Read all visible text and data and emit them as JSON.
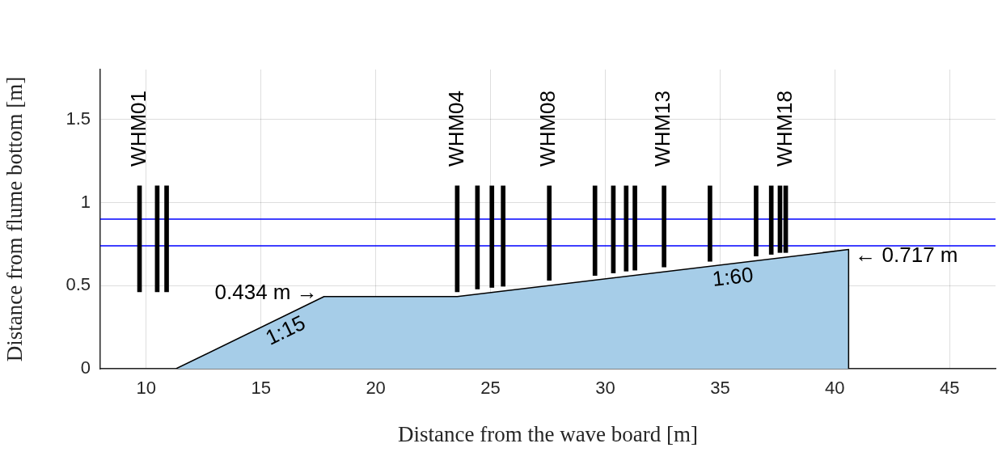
{
  "chart_data": {
    "type": "bar",
    "xlabel": "Distance from the wave board [m]",
    "ylabel": "Distance from flume bottom [m]",
    "xlim": [
      8,
      47
    ],
    "xticks": [
      10,
      15,
      20,
      25,
      30,
      35,
      40,
      45
    ],
    "ylim": [
      0,
      1.8
    ],
    "yticks": [
      0,
      0.5,
      1,
      1.5
    ],
    "grid": true,
    "legend": false,
    "series": [
      {
        "type": "area",
        "color": "#a6cde8",
        "x": [
          11.3,
          17.75,
          23.55,
          40.6,
          40.6
        ],
        "values": [
          0,
          0.434,
          0.434,
          0.717,
          0
        ]
      },
      {
        "color": "#000000",
        "x": [
          9.71,
          10.48,
          10.89,
          23.55,
          24.43,
          25.06,
          25.55,
          27.56,
          29.55,
          30.35,
          30.91,
          31.29,
          32.56,
          34.56,
          36.57,
          37.23,
          37.61,
          37.86
        ],
        "base": [
          0.463,
          0.463,
          0.463,
          0.463,
          0.479,
          0.489,
          0.496,
          0.532,
          0.561,
          0.576,
          0.587,
          0.593,
          0.612,
          0.646,
          0.678,
          0.688,
          0.699,
          0.699
        ],
        "values": [
          0.637,
          0.637,
          0.637,
          0.637,
          0.621,
          0.611,
          0.604,
          0.568,
          0.539,
          0.524,
          0.513,
          0.507,
          0.488,
          0.454,
          0.422,
          0.412,
          0.401,
          0.401
        ],
        "value_labels": [
          "WHM01",
          null,
          null,
          "WHM04",
          null,
          null,
          null,
          "WHM08",
          null,
          null,
          null,
          null,
          "WHM13",
          null,
          null,
          null,
          null,
          "WHM18"
        ]
      }
    ],
    "ref_lines": [
      {
        "axis": "y",
        "value": 0.9,
        "color": "#0000ff"
      },
      {
        "axis": "y",
        "value": 0.74,
        "color": "#0000ff"
      }
    ],
    "annotations": [
      {
        "text": "0.434 m →",
        "x": 17.75,
        "y": 0.434
      },
      {
        "text": "← 0.717 m",
        "x": 40.6,
        "y": 0.717
      },
      "1:15",
      "1:60"
    ]
  }
}
